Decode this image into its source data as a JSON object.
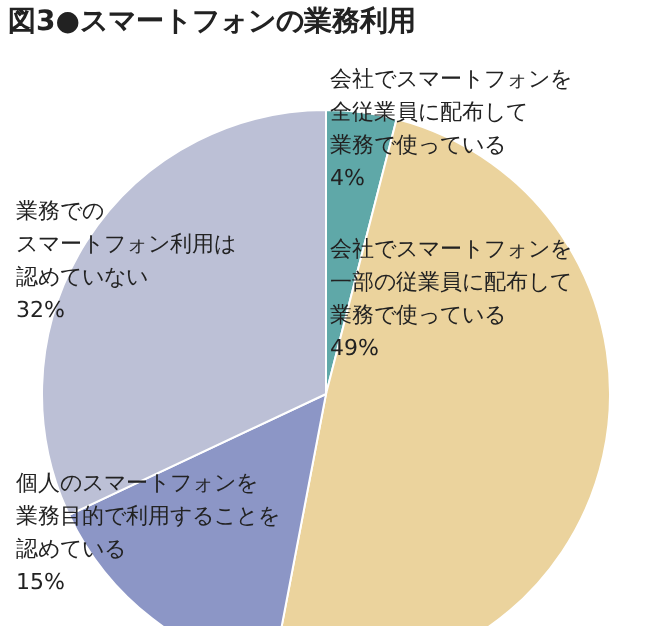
{
  "chart_data": {
    "type": "pie",
    "title": "図3●スマートフォンの業務利用",
    "categories": [
      "会社でスマートフォンを全従業員に配布して業務で使っている",
      "会社でスマートフォンを一部の従業員に配布して業務で使っている",
      "個人のスマートフォンを業務目的で利用することを認めている",
      "業務でのスマートフォン利用は認めていない"
    ],
    "values": [
      4,
      49,
      15,
      32
    ],
    "colors": [
      "#5fa8a8",
      "#ebd39d",
      "#8c96c6",
      "#bcc0d6"
    ],
    "value_labels": [
      "4%",
      "49%",
      "15%",
      "32%"
    ]
  }
}
